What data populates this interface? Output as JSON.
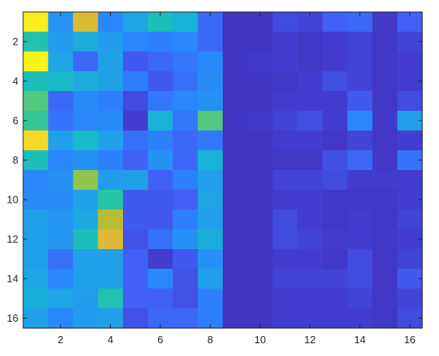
{
  "chart_data": {
    "type": "heatmap",
    "title": "",
    "xlabel": "",
    "ylabel": "",
    "rows": 16,
    "cols": 16,
    "xlim": [
      0.5,
      16.5
    ],
    "ylim": [
      0.5,
      16.5
    ],
    "y_direction": "reverse",
    "x_ticks": [
      2,
      4,
      6,
      8,
      10,
      12,
      14,
      16
    ],
    "y_ticks": [
      2,
      4,
      6,
      8,
      10,
      12,
      14,
      16
    ],
    "x_tick_labels": [
      "2",
      "4",
      "6",
      "8",
      "10",
      "12",
      "14",
      "16"
    ],
    "y_tick_labels": [
      "2",
      "4",
      "6",
      "8",
      "10",
      "12",
      "14",
      "16"
    ],
    "colormap": "parula",
    "color_range": [
      0,
      1
    ],
    "grid": false,
    "values": [
      [
        0.98,
        0.35,
        0.85,
        0.3,
        0.42,
        0.55,
        0.48,
        0.22,
        0.06,
        0.06,
        0.14,
        0.12,
        0.2,
        0.22,
        0.08,
        0.2
      ],
      [
        0.58,
        0.38,
        0.45,
        0.38,
        0.3,
        0.28,
        0.3,
        0.22,
        0.06,
        0.06,
        0.1,
        0.08,
        0.1,
        0.12,
        0.08,
        0.12
      ],
      [
        0.99,
        0.42,
        0.22,
        0.4,
        0.18,
        0.22,
        0.26,
        0.3,
        0.06,
        0.08,
        0.1,
        0.08,
        0.1,
        0.12,
        0.08,
        0.1
      ],
      [
        0.55,
        0.52,
        0.45,
        0.4,
        0.28,
        0.18,
        0.24,
        0.32,
        0.06,
        0.06,
        0.08,
        0.1,
        0.15,
        0.12,
        0.08,
        0.1
      ],
      [
        0.66,
        0.22,
        0.32,
        0.28,
        0.14,
        0.26,
        0.3,
        0.34,
        0.06,
        0.06,
        0.1,
        0.1,
        0.1,
        0.18,
        0.08,
        0.14
      ],
      [
        0.62,
        0.25,
        0.3,
        0.32,
        0.1,
        0.48,
        0.26,
        0.66,
        0.06,
        0.08,
        0.12,
        0.15,
        0.1,
        0.3,
        0.08,
        0.4
      ],
      [
        0.95,
        0.4,
        0.52,
        0.4,
        0.24,
        0.28,
        0.22,
        0.26,
        0.06,
        0.06,
        0.1,
        0.1,
        0.08,
        0.12,
        0.08,
        0.1
      ],
      [
        0.55,
        0.3,
        0.34,
        0.28,
        0.2,
        0.34,
        0.22,
        0.48,
        0.06,
        0.06,
        0.08,
        0.08,
        0.15,
        0.22,
        0.08,
        0.25
      ],
      [
        0.3,
        0.34,
        0.74,
        0.38,
        0.4,
        0.2,
        0.28,
        0.4,
        0.06,
        0.06,
        0.12,
        0.12,
        0.14,
        0.1,
        0.1,
        0.1
      ],
      [
        0.32,
        0.32,
        0.4,
        0.6,
        0.18,
        0.18,
        0.2,
        0.42,
        0.06,
        0.06,
        0.1,
        0.1,
        0.08,
        0.08,
        0.08,
        0.1
      ],
      [
        0.4,
        0.36,
        0.44,
        0.8,
        0.18,
        0.18,
        0.28,
        0.4,
        0.06,
        0.06,
        0.14,
        0.1,
        0.08,
        0.1,
        0.08,
        0.12
      ],
      [
        0.4,
        0.36,
        0.55,
        0.86,
        0.16,
        0.24,
        0.34,
        0.46,
        0.06,
        0.06,
        0.14,
        0.12,
        0.1,
        0.1,
        0.08,
        0.1
      ],
      [
        0.4,
        0.24,
        0.4,
        0.4,
        0.2,
        0.1,
        0.18,
        0.34,
        0.06,
        0.06,
        0.1,
        0.1,
        0.08,
        0.14,
        0.08,
        0.12
      ],
      [
        0.42,
        0.3,
        0.4,
        0.4,
        0.2,
        0.3,
        0.16,
        0.4,
        0.06,
        0.06,
        0.12,
        0.12,
        0.12,
        0.14,
        0.08,
        0.18
      ],
      [
        0.46,
        0.42,
        0.38,
        0.58,
        0.2,
        0.2,
        0.16,
        0.28,
        0.06,
        0.06,
        0.1,
        0.1,
        0.1,
        0.12,
        0.08,
        0.12
      ],
      [
        0.4,
        0.3,
        0.38,
        0.4,
        0.16,
        0.22,
        0.22,
        0.28,
        0.06,
        0.06,
        0.1,
        0.1,
        0.1,
        0.1,
        0.08,
        0.14
      ]
    ]
  }
}
